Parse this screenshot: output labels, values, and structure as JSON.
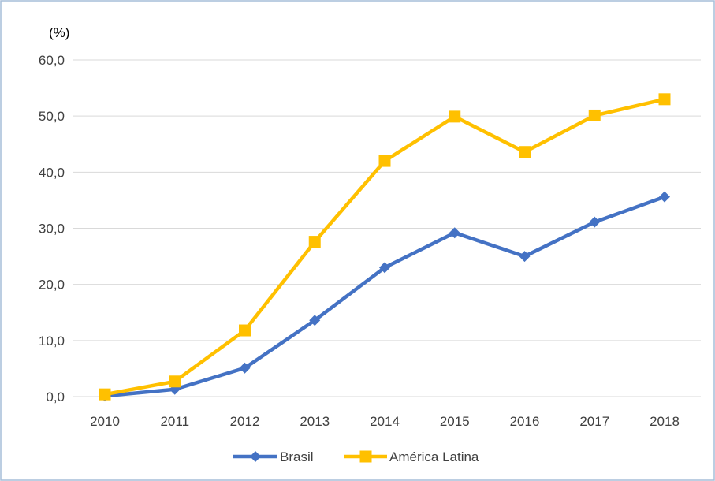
{
  "chart_data": {
    "type": "line",
    "title": "",
    "xlabel": "",
    "ylabel": "(%)",
    "ylim": [
      0,
      60
    ],
    "yticks": [
      0,
      10,
      20,
      30,
      40,
      50,
      60
    ],
    "ytick_labels": [
      "0,0",
      "10,0",
      "20,0",
      "30,0",
      "40,0",
      "50,0",
      "60,0"
    ],
    "categories": [
      "2010",
      "2011",
      "2012",
      "2013",
      "2014",
      "2015",
      "2016",
      "2017",
      "2018"
    ],
    "grid": "horizontal",
    "legend_position": "bottom",
    "series": [
      {
        "name": "Brasil",
        "color": "#4472C4",
        "marker": "diamond",
        "values": [
          0.1,
          1.3,
          5.1,
          13.6,
          23.0,
          29.2,
          25.0,
          31.1,
          35.6
        ]
      },
      {
        "name": "América Latina",
        "color": "#FFC000",
        "marker": "square",
        "values": [
          0.4,
          2.7,
          11.8,
          27.6,
          42.0,
          49.9,
          43.6,
          50.1,
          53.0
        ]
      }
    ]
  }
}
